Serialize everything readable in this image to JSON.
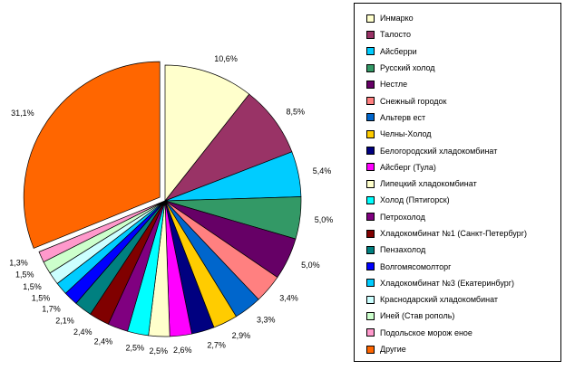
{
  "chart_data": {
    "type": "pie",
    "title": "",
    "legend_position": "right",
    "series": [
      {
        "name": "Инмарко",
        "value": 10.6,
        "label": "10,6%",
        "color": "#ffffcc"
      },
      {
        "name": "Талосто",
        "value": 8.5,
        "label": "8,5%",
        "color": "#993366"
      },
      {
        "name": "Айсберри",
        "value": 5.4,
        "label": "5,4%",
        "color": "#00ccff"
      },
      {
        "name": "Русский холод",
        "value": 5.0,
        "label": "5,0%",
        "color": "#339966"
      },
      {
        "name": "Нестле",
        "value": 5.0,
        "label": "5,0%",
        "color": "#660066"
      },
      {
        "name": "Снежный городок",
        "value": 3.4,
        "label": "3,4%",
        "color": "#ff8080"
      },
      {
        "name": "Альтерв ест",
        "value": 3.3,
        "label": "3,3%",
        "color": "#0066cc"
      },
      {
        "name": "Челны-Холод",
        "value": 2.9,
        "label": "2,9%",
        "color": "#ffcc00"
      },
      {
        "name": "Белогородский хладокомбинат",
        "value": 2.7,
        "label": "2,7%",
        "color": "#000080"
      },
      {
        "name": "Айсберг (Тула)",
        "value": 2.6,
        "label": "2,6%",
        "color": "#ff00ff"
      },
      {
        "name": "Липецкий хладокомбинат",
        "value": 2.5,
        "label": "2,5%",
        "color": "#ffffcc"
      },
      {
        "name": "Холод (Пятигорск)",
        "value": 2.5,
        "label": "2,5%",
        "color": "#00ffff"
      },
      {
        "name": "Петрохолод",
        "value": 2.4,
        "label": "2,4%",
        "color": "#800080"
      },
      {
        "name": "Хладокомбинат №1 (Санкт-Петербург)",
        "value": 2.4,
        "label": "2,4%",
        "color": "#800000"
      },
      {
        "name": "Пензахолод",
        "value": 2.1,
        "label": "2,1%",
        "color": "#008080"
      },
      {
        "name": "Волгомясомолторг",
        "value": 1.7,
        "label": "1,7%",
        "color": "#0000ff"
      },
      {
        "name": "Хладокомбинат №3 (Екатеринбург)",
        "value": 1.5,
        "label": "1,5%",
        "color": "#00ccff"
      },
      {
        "name": "Краснодарский хладокомбинат",
        "value": 1.5,
        "label": "1,5%",
        "color": "#ccffff"
      },
      {
        "name": "Иней (Став рополь)",
        "value": 1.5,
        "label": "1,5%",
        "color": "#ccffcc"
      },
      {
        "name": "Подольское морож еное",
        "value": 1.3,
        "label": "1,3%",
        "color": "#ff99cc"
      },
      {
        "name": "Другие",
        "value": 31.1,
        "label": "31,1%",
        "color": "#ff6600"
      }
    ]
  }
}
